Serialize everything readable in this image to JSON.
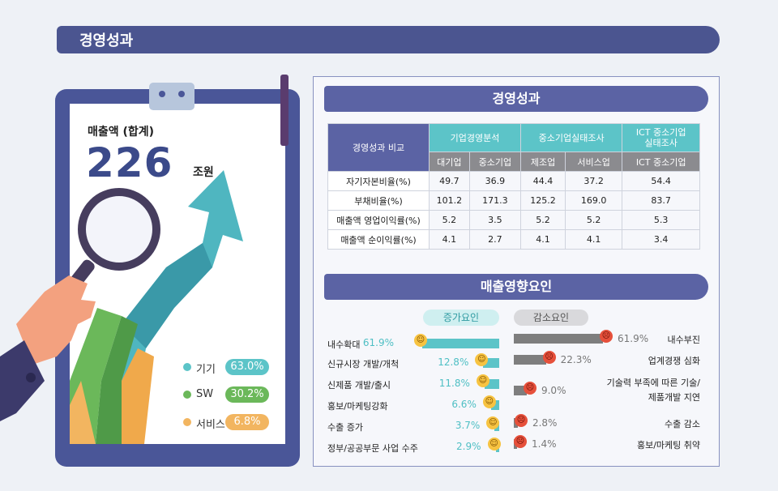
{
  "banner": {
    "title": "경영성과"
  },
  "summary": {
    "total_label": "매출액 (합계)",
    "total_value": "226",
    "total_unit": "조원",
    "shares": [
      {
        "name": "기기",
        "value": "63.0%",
        "color": "#5cc4c8"
      },
      {
        "name": "SW",
        "value": "30.2%",
        "color": "#6bb85a"
      },
      {
        "name": "서비스",
        "value": "6.8%",
        "color": "#f2b560"
      }
    ]
  },
  "performance": {
    "title": "경영성과",
    "corner": "경영성과 비교",
    "groups": [
      "기업경영분석",
      "중소기업실태조사",
      "ICT 중소기업\n실태조사"
    ],
    "subheads": [
      "대기업",
      "중소기업",
      "제조업",
      "서비스업",
      "ICT 중소기업"
    ],
    "rows": [
      {
        "label": "자기자본비율(%)",
        "values": [
          "49.7",
          "36.9",
          "44.4",
          "37.2",
          "54.4"
        ]
      },
      {
        "label": "부채비율(%)",
        "values": [
          "101.2",
          "171.3",
          "125.2",
          "169.0",
          "83.7"
        ]
      },
      {
        "label": "매출액 영업이익률(%)",
        "values": [
          "5.2",
          "3.5",
          "5.2",
          "5.2",
          "5.3"
        ]
      },
      {
        "label": "매출액 순이익률(%)",
        "values": [
          "4.1",
          "2.7",
          "4.1",
          "4.1",
          "3.4"
        ]
      }
    ]
  },
  "factors": {
    "title": "매출영향요인",
    "increase_label": "증가요인",
    "decrease_label": "감소요인",
    "increase": [
      {
        "label": "내수확대",
        "value": "61.9%",
        "pct": 61.9
      },
      {
        "label": "신규시장 개발/개척",
        "value": "12.8%",
        "pct": 12.8
      },
      {
        "label": "신제품 개발/출시",
        "value": "11.8%",
        "pct": 11.8
      },
      {
        "label": "홍보/마케팅강화",
        "value": "6.6%",
        "pct": 6.6
      },
      {
        "label": "수출 증가",
        "value": "3.7%",
        "pct": 3.7
      },
      {
        "label": "정부/공공부문 사업 수주",
        "value": "2.9%",
        "pct": 2.9
      }
    ],
    "decrease": [
      {
        "label": "내수부진",
        "value": "61.9%",
        "pct": 61.9
      },
      {
        "label": "업계경쟁 심화",
        "value": "22.3%",
        "pct": 22.3
      },
      {
        "label": "기술력 부족에 따른 기술/\n제품개발 지연",
        "value": "9.0%",
        "pct": 9.0
      },
      {
        "label": "수출 감소",
        "value": "2.8%",
        "pct": 2.8
      },
      {
        "label": "홍보/마케팅 취약",
        "value": "1.4%",
        "pct": 1.4
      }
    ]
  }
}
